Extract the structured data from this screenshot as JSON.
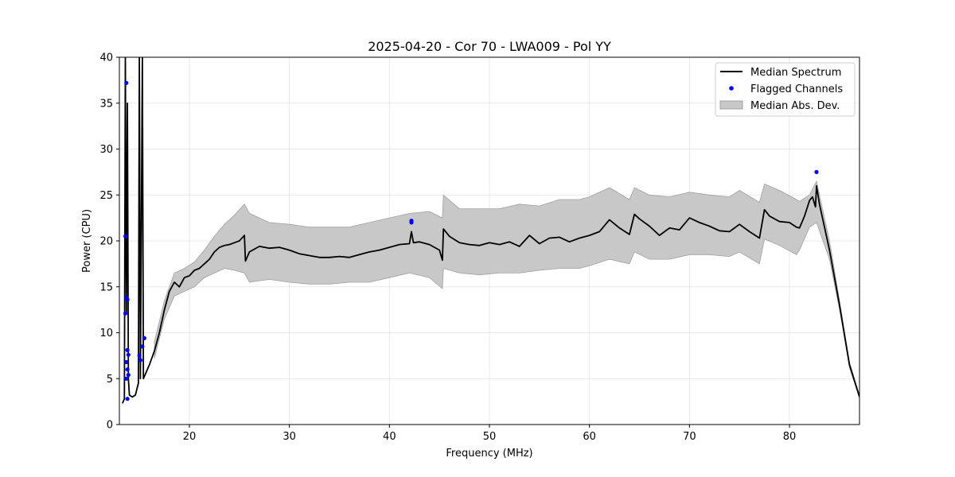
{
  "chart_data": {
    "type": "line",
    "title": "2025-04-20 - Cor 70 - LWA009 - Pol YY",
    "xlabel": "Frequency (MHz)",
    "ylabel": "Power (CPU)",
    "xlim": [
      13,
      87
    ],
    "ylim": [
      0,
      40
    ],
    "xticks": [
      20,
      30,
      40,
      50,
      60,
      70,
      80
    ],
    "yticks": [
      0,
      5,
      10,
      15,
      20,
      25,
      30,
      35,
      40
    ],
    "grid": true,
    "legend_position": "top-right",
    "colors": {
      "median": "#000000",
      "flagged": "#0000ff",
      "mad_fill": "#c8c8c8",
      "mad_edge": "#a0a0a0"
    },
    "series": [
      {
        "name": "Median Spectrum",
        "kind": "line",
        "points": [
          [
            13.3,
            2.3
          ],
          [
            13.5,
            2.8
          ],
          [
            13.6,
            40
          ],
          [
            13.7,
            12
          ],
          [
            13.8,
            35
          ],
          [
            13.9,
            5
          ],
          [
            14.0,
            3.2
          ],
          [
            14.3,
            3.0
          ],
          [
            14.6,
            3.2
          ],
          [
            14.9,
            4.5
          ],
          [
            15.0,
            40
          ],
          [
            15.1,
            5
          ],
          [
            15.3,
            40
          ],
          [
            15.4,
            5
          ],
          [
            15.6,
            5.5
          ],
          [
            16.0,
            6.5
          ],
          [
            16.5,
            8.0
          ],
          [
            17.0,
            10.0
          ],
          [
            17.5,
            12.5
          ],
          [
            18.0,
            14.5
          ],
          [
            18.5,
            15.5
          ],
          [
            19.0,
            15.0
          ],
          [
            19.5,
            16.0
          ],
          [
            20.0,
            16.2
          ],
          [
            20.5,
            16.8
          ],
          [
            21.0,
            17.0
          ],
          [
            21.5,
            17.5
          ],
          [
            22.0,
            18.0
          ],
          [
            22.5,
            18.8
          ],
          [
            23.0,
            19.3
          ],
          [
            23.5,
            19.5
          ],
          [
            24.0,
            19.6
          ],
          [
            24.5,
            19.8
          ],
          [
            25.0,
            20.0
          ],
          [
            25.5,
            20.6
          ],
          [
            25.6,
            17.8
          ],
          [
            26.0,
            18.8
          ],
          [
            27.0,
            19.4
          ],
          [
            28.0,
            19.2
          ],
          [
            29.0,
            19.3
          ],
          [
            30.0,
            19.0
          ],
          [
            31.0,
            18.6
          ],
          [
            32.0,
            18.4
          ],
          [
            33.0,
            18.2
          ],
          [
            34.0,
            18.2
          ],
          [
            35.0,
            18.3
          ],
          [
            36.0,
            18.2
          ],
          [
            37.0,
            18.5
          ],
          [
            38.0,
            18.8
          ],
          [
            39.0,
            19.0
          ],
          [
            40.0,
            19.3
          ],
          [
            41.0,
            19.6
          ],
          [
            42.0,
            19.7
          ],
          [
            42.2,
            21.0
          ],
          [
            42.4,
            19.8
          ],
          [
            43.0,
            19.9
          ],
          [
            44.0,
            19.6
          ],
          [
            45.0,
            19.0
          ],
          [
            45.3,
            17.9
          ],
          [
            45.4,
            21.3
          ],
          [
            46.0,
            20.5
          ],
          [
            47.0,
            19.8
          ],
          [
            48.0,
            19.6
          ],
          [
            49.0,
            19.5
          ],
          [
            50.0,
            19.8
          ],
          [
            51.0,
            19.6
          ],
          [
            52.0,
            19.9
          ],
          [
            53.0,
            19.4
          ],
          [
            54.0,
            20.6
          ],
          [
            55.0,
            19.7
          ],
          [
            56.0,
            20.3
          ],
          [
            57.0,
            20.4
          ],
          [
            58.0,
            19.9
          ],
          [
            59.0,
            20.3
          ],
          [
            60.0,
            20.6
          ],
          [
            61.0,
            21.0
          ],
          [
            62.0,
            22.3
          ],
          [
            63.0,
            21.4
          ],
          [
            64.0,
            20.7
          ],
          [
            64.5,
            22.9
          ],
          [
            65.0,
            22.4
          ],
          [
            66.0,
            21.6
          ],
          [
            67.0,
            20.6
          ],
          [
            68.0,
            21.4
          ],
          [
            69.0,
            21.2
          ],
          [
            70.0,
            22.5
          ],
          [
            71.0,
            22.0
          ],
          [
            72.0,
            21.6
          ],
          [
            73.0,
            21.1
          ],
          [
            74.0,
            21.0
          ],
          [
            75.0,
            21.8
          ],
          [
            76.0,
            21.0
          ],
          [
            77.0,
            20.3
          ],
          [
            77.5,
            23.4
          ],
          [
            78.0,
            22.7
          ],
          [
            79.0,
            22.1
          ],
          [
            80.0,
            22.0
          ],
          [
            80.7,
            21.5
          ],
          [
            81.0,
            21.4
          ],
          [
            81.5,
            22.7
          ],
          [
            82.0,
            24.4
          ],
          [
            82.3,
            24.8
          ],
          [
            82.6,
            23.7
          ],
          [
            82.7,
            26.0
          ],
          [
            83.0,
            24.0
          ],
          [
            84.0,
            19.0
          ],
          [
            85.0,
            13.0
          ],
          [
            86.0,
            6.5
          ],
          [
            87.0,
            3.0
          ]
        ]
      },
      {
        "name": "Flagged Channels",
        "kind": "scatter",
        "points": [
          [
            13.6,
            20.5
          ],
          [
            13.7,
            37.2
          ],
          [
            13.6,
            12.1
          ],
          [
            13.7,
            13.8
          ],
          [
            13.8,
            13.6
          ],
          [
            13.8,
            8.1
          ],
          [
            13.9,
            7.6
          ],
          [
            13.7,
            6.8
          ],
          [
            13.8,
            6.0
          ],
          [
            13.9,
            5.4
          ],
          [
            13.7,
            5.0
          ],
          [
            13.8,
            2.8
          ],
          [
            15.0,
            7.5
          ],
          [
            15.1,
            7.0
          ],
          [
            15.3,
            8.5
          ],
          [
            15.5,
            9.4
          ],
          [
            42.2,
            22.2
          ],
          [
            42.2,
            22.0
          ],
          [
            82.7,
            27.5
          ]
        ]
      },
      {
        "name": "Median Abs. Dev.",
        "kind": "band",
        "upper": [
          [
            16.5,
            9.0
          ],
          [
            17.5,
            13.5
          ],
          [
            18.5,
            16.5
          ],
          [
            19.5,
            17.0
          ],
          [
            20.5,
            17.7
          ],
          [
            21.5,
            19.0
          ],
          [
            22.5,
            20.5
          ],
          [
            23.5,
            21.8
          ],
          [
            24.5,
            22.8
          ],
          [
            25.5,
            24.0
          ],
          [
            26.0,
            23.0
          ],
          [
            28.0,
            22.0
          ],
          [
            30.0,
            21.8
          ],
          [
            32.0,
            21.5
          ],
          [
            34.0,
            21.5
          ],
          [
            36.0,
            21.5
          ],
          [
            38.0,
            22.0
          ],
          [
            40.0,
            22.5
          ],
          [
            42.0,
            23.0
          ],
          [
            44.0,
            23.2
          ],
          [
            45.3,
            22.5
          ],
          [
            45.4,
            25.0
          ],
          [
            47.0,
            23.5
          ],
          [
            49.0,
            23.5
          ],
          [
            51.0,
            23.5
          ],
          [
            53.0,
            24.0
          ],
          [
            55.0,
            23.8
          ],
          [
            57.0,
            24.5
          ],
          [
            59.0,
            24.5
          ],
          [
            60.0,
            24.8
          ],
          [
            62.0,
            25.8
          ],
          [
            64.0,
            24.5
          ],
          [
            64.5,
            25.8
          ],
          [
            66.0,
            25.0
          ],
          [
            68.0,
            24.8
          ],
          [
            70.0,
            25.3
          ],
          [
            72.0,
            25.0
          ],
          [
            74.0,
            24.8
          ],
          [
            75.0,
            25.5
          ],
          [
            77.0,
            24.2
          ],
          [
            77.5,
            26.2
          ],
          [
            79.0,
            25.5
          ],
          [
            80.7,
            24.5
          ],
          [
            81.0,
            24.3
          ],
          [
            82.0,
            25.0
          ],
          [
            82.7,
            26.5
          ],
          [
            84.0,
            20.0
          ],
          [
            85.0,
            13.5
          ],
          [
            86.0,
            6.8
          ],
          [
            87.0,
            3.2
          ]
        ],
        "lower": [
          [
            16.5,
            7.2
          ],
          [
            17.5,
            11.5
          ],
          [
            18.5,
            14.0
          ],
          [
            19.5,
            14.5
          ],
          [
            20.5,
            15.0
          ],
          [
            21.5,
            16.0
          ],
          [
            22.5,
            16.5
          ],
          [
            23.5,
            17.0
          ],
          [
            24.5,
            16.8
          ],
          [
            25.5,
            16.5
          ],
          [
            26.0,
            15.5
          ],
          [
            28.0,
            15.8
          ],
          [
            30.0,
            15.5
          ],
          [
            32.0,
            15.3
          ],
          [
            34.0,
            15.3
          ],
          [
            36.0,
            15.5
          ],
          [
            38.0,
            15.5
          ],
          [
            40.0,
            16.0
          ],
          [
            42.0,
            16.5
          ],
          [
            44.0,
            16.0
          ],
          [
            45.3,
            14.8
          ],
          [
            45.4,
            17.0
          ],
          [
            47.0,
            16.5
          ],
          [
            49.0,
            16.3
          ],
          [
            51.0,
            16.5
          ],
          [
            53.0,
            16.5
          ],
          [
            55.0,
            16.8
          ],
          [
            57.0,
            17.0
          ],
          [
            59.0,
            17.0
          ],
          [
            60.0,
            17.3
          ],
          [
            62.0,
            18.0
          ],
          [
            64.0,
            17.5
          ],
          [
            64.5,
            18.8
          ],
          [
            66.0,
            18.0
          ],
          [
            68.0,
            18.0
          ],
          [
            70.0,
            18.5
          ],
          [
            72.0,
            18.5
          ],
          [
            74.0,
            18.3
          ],
          [
            75.0,
            18.8
          ],
          [
            77.0,
            17.5
          ],
          [
            77.5,
            20.2
          ],
          [
            79.0,
            19.5
          ],
          [
            80.7,
            18.5
          ],
          [
            81.0,
            19.0
          ],
          [
            82.0,
            21.5
          ],
          [
            82.7,
            22.0
          ],
          [
            84.0,
            18.0
          ],
          [
            85.0,
            12.5
          ],
          [
            86.0,
            6.2
          ],
          [
            87.0,
            2.9
          ]
        ]
      }
    ]
  }
}
